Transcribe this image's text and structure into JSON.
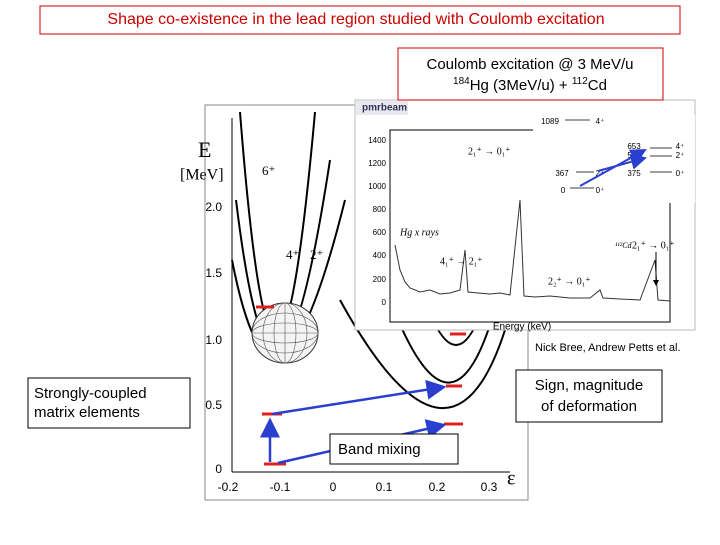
{
  "title": "Shape co-existence in the lead region studied with Coulomb excitation",
  "beam_box": {
    "line1": "Coulomb excitation @ 3 MeV/u",
    "mass_a": "184",
    "line2a": "Hg (3MeV/u) + ",
    "mass_b": "112",
    "line2b": "Cd"
  },
  "energy_plot": {
    "y_label": "E",
    "y_unit": "[MeV]",
    "yticks": [
      "0",
      "0.5",
      "1.0",
      "1.5",
      "2.0"
    ],
    "xticks": [
      "-0.2",
      "-0.1",
      "0",
      "0.1",
      "0.2",
      "0.3"
    ],
    "x_label": "ε",
    "spins": [
      "6⁺",
      "4⁺",
      "2⁺"
    ]
  },
  "spectrum": {
    "header": "pmrbeam",
    "yticks": [
      "1400",
      "1200",
      "1000",
      "800",
      "600",
      "400",
      "200",
      "0"
    ],
    "x_label": "Energy (keV)",
    "xray_label": "Hg x rays",
    "transitions": [
      "2₁⁺ → 0₁⁺",
      "4₁⁺ → 2₁⁺",
      "2₂⁺ → 0₁⁺",
      "¹¹²Cd",
      "2₁⁺ → 0₁⁺"
    ],
    "level_scheme": [
      "1089",
      "4⁺",
      "653",
      "534",
      "4⁺",
      "2⁺",
      "367",
      "2⁺",
      "375",
      "0⁺",
      "0",
      "0⁺"
    ]
  },
  "credits": "Nick Bree, Andrew Petts et al.",
  "left_note": [
    "Strongly-coupled",
    "matrix elements"
  ],
  "right_note": [
    "Sign, magnitude",
    "of deformation"
  ],
  "band_mixing": "Band mixing"
}
